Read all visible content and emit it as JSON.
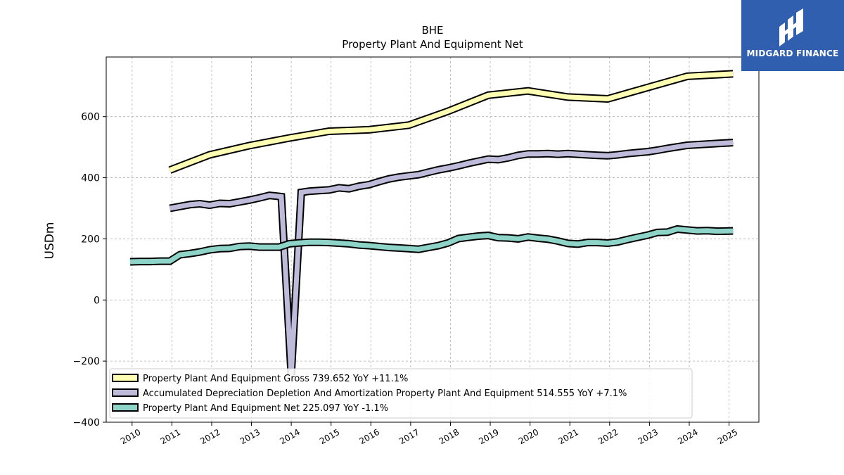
{
  "brand": {
    "name": "MIDGARD FINANCE",
    "bg_color": "#2f5fae"
  },
  "chart_data": {
    "type": "line",
    "title": "BHE",
    "subtitle": "Property Plant And Equipment Net",
    "xlabel": "",
    "ylabel": "USDm",
    "xlim": [
      2009.35,
      2025.75
    ],
    "ylim": [
      -400,
      795
    ],
    "x_ticks": [
      "2010",
      "2011",
      "2012",
      "2013",
      "2014",
      "2015",
      "2016",
      "2017",
      "2018",
      "2019",
      "2020",
      "2021",
      "2022",
      "2023",
      "2024",
      "2025"
    ],
    "y_ticks": [
      -400,
      -200,
      0,
      200,
      400,
      600
    ],
    "grid": true,
    "legend_position": "lower-left",
    "series": [
      {
        "name": "Property Plant And Equipment Gross",
        "legend_label": "Property Plant And Equipment Gross  739.652 YoY +11.1%",
        "color": "#ffffb3",
        "points": [
          [
            2010.95,
            425
          ],
          [
            2011.95,
            475
          ],
          [
            2012.95,
            505
          ],
          [
            2013.95,
            530
          ],
          [
            2014.95,
            552
          ],
          [
            2015.95,
            557
          ],
          [
            2016.95,
            572
          ],
          [
            2017.95,
            618
          ],
          [
            2018.95,
            670
          ],
          [
            2019.95,
            684
          ],
          [
            2020.95,
            664
          ],
          [
            2021.95,
            658
          ],
          [
            2022.95,
            695
          ],
          [
            2023.95,
            732
          ],
          [
            2025.1,
            740
          ]
        ]
      },
      {
        "name": "Accumulated Depreciation Depletion And Amortization Property Plant And Equipment",
        "legend_label": "Accumulated Depreciation Depletion And Amortization Property Plant And Equipment  514.555 YoY +7.1%",
        "color": "#bebada",
        "points": [
          [
            2010.95,
            300
          ],
          [
            2011.2,
            306
          ],
          [
            2011.45,
            312
          ],
          [
            2011.7,
            315
          ],
          [
            2011.95,
            310
          ],
          [
            2012.2,
            316
          ],
          [
            2012.45,
            315
          ],
          [
            2012.7,
            321
          ],
          [
            2012.95,
            327
          ],
          [
            2013.2,
            334
          ],
          [
            2013.45,
            342
          ],
          [
            2013.62,
            340
          ],
          [
            2013.75,
            338
          ],
          [
            2014.0,
            -245
          ],
          [
            2014.25,
            352
          ],
          [
            2014.45,
            356
          ],
          [
            2014.7,
            358
          ],
          [
            2014.95,
            360
          ],
          [
            2015.2,
            367
          ],
          [
            2015.45,
            364
          ],
          [
            2015.7,
            372
          ],
          [
            2015.95,
            377
          ],
          [
            2016.2,
            387
          ],
          [
            2016.45,
            396
          ],
          [
            2016.7,
            402
          ],
          [
            2016.95,
            406
          ],
          [
            2017.2,
            410
          ],
          [
            2017.45,
            418
          ],
          [
            2017.7,
            426
          ],
          [
            2017.95,
            432
          ],
          [
            2018.2,
            439
          ],
          [
            2018.45,
            447
          ],
          [
            2018.7,
            454
          ],
          [
            2018.95,
            461
          ],
          [
            2019.2,
            459
          ],
          [
            2019.45,
            465
          ],
          [
            2019.7,
            473
          ],
          [
            2019.95,
            478
          ],
          [
            2020.2,
            478
          ],
          [
            2020.45,
            479
          ],
          [
            2020.7,
            477
          ],
          [
            2020.95,
            479
          ],
          [
            2021.2,
            477
          ],
          [
            2021.45,
            475
          ],
          [
            2021.7,
            473
          ],
          [
            2021.95,
            472
          ],
          [
            2022.2,
            475
          ],
          [
            2022.45,
            479
          ],
          [
            2022.7,
            482
          ],
          [
            2022.95,
            485
          ],
          [
            2023.2,
            490
          ],
          [
            2023.45,
            496
          ],
          [
            2023.7,
            501
          ],
          [
            2023.95,
            506
          ],
          [
            2024.2,
            508
          ],
          [
            2024.45,
            510
          ],
          [
            2024.7,
            512
          ],
          [
            2025.1,
            515
          ]
        ]
      },
      {
        "name": "Property Plant And Equipment Net",
        "legend_label": "Property Plant And Equipment Net  225.097 YoY -1.1%",
        "color": "#8dd3c7",
        "points": [
          [
            2009.95,
            125
          ],
          [
            2010.2,
            126
          ],
          [
            2010.45,
            126
          ],
          [
            2010.7,
            127
          ],
          [
            2010.95,
            127
          ],
          [
            2011.2,
            148
          ],
          [
            2011.45,
            152
          ],
          [
            2011.7,
            157
          ],
          [
            2011.95,
            164
          ],
          [
            2012.2,
            168
          ],
          [
            2012.45,
            169
          ],
          [
            2012.7,
            175
          ],
          [
            2012.95,
            176
          ],
          [
            2013.2,
            173
          ],
          [
            2013.45,
            173
          ],
          [
            2013.7,
            173
          ],
          [
            2013.95,
            184
          ],
          [
            2014.2,
            187
          ],
          [
            2014.45,
            189
          ],
          [
            2014.7,
            189
          ],
          [
            2014.95,
            188
          ],
          [
            2015.2,
            186
          ],
          [
            2015.45,
            184
          ],
          [
            2015.7,
            180
          ],
          [
            2015.95,
            178
          ],
          [
            2016.2,
            175
          ],
          [
            2016.45,
            172
          ],
          [
            2016.7,
            170
          ],
          [
            2016.95,
            168
          ],
          [
            2017.2,
            166
          ],
          [
            2017.45,
            172
          ],
          [
            2017.7,
            178
          ],
          [
            2017.95,
            187
          ],
          [
            2018.2,
            201
          ],
          [
            2018.45,
            205
          ],
          [
            2018.7,
            209
          ],
          [
            2018.95,
            211
          ],
          [
            2019.2,
            204
          ],
          [
            2019.45,
            203
          ],
          [
            2019.7,
            200
          ],
          [
            2019.95,
            206
          ],
          [
            2020.2,
            202
          ],
          [
            2020.45,
            199
          ],
          [
            2020.7,
            193
          ],
          [
            2020.95,
            185
          ],
          [
            2021.2,
            183
          ],
          [
            2021.45,
            188
          ],
          [
            2021.7,
            188
          ],
          [
            2021.95,
            186
          ],
          [
            2022.2,
            190
          ],
          [
            2022.45,
            198
          ],
          [
            2022.7,
            205
          ],
          [
            2022.95,
            212
          ],
          [
            2023.2,
            221
          ],
          [
            2023.45,
            222
          ],
          [
            2023.7,
            232
          ],
          [
            2023.95,
            229
          ],
          [
            2024.2,
            226
          ],
          [
            2024.45,
            227
          ],
          [
            2024.7,
            225
          ],
          [
            2025.1,
            226
          ]
        ]
      }
    ]
  }
}
